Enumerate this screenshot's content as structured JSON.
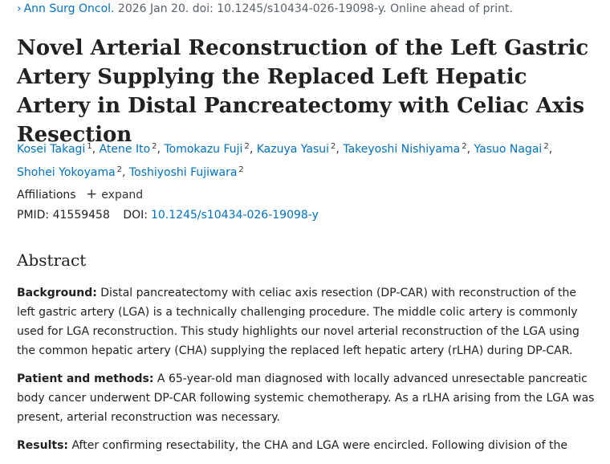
{
  "citation": {
    "journal": "Ann Surg Oncol.",
    "details": " 2026 Jan 20. doi: 10.1245/s10434-026-19098-y. Online ahead of print."
  },
  "title": "Novel Arterial Reconstruction of the Left Gastric Artery Supplying the Replaced Left Hepatic Artery in Distal Pancreatectomy with Celiac Axis Resection",
  "authors": [
    {
      "name": "Kosei Takagi",
      "aff": "1"
    },
    {
      "name": "Atene Ito",
      "aff": "2"
    },
    {
      "name": "Tomokazu Fuji",
      "aff": "2"
    },
    {
      "name": "Kazuya Yasui",
      "aff": "2"
    },
    {
      "name": "Takeyoshi Nishiyama",
      "aff": "2"
    },
    {
      "name": "Yasuo Nagai",
      "aff": "2"
    },
    {
      "name": "Shohei Yokoyama",
      "aff": "2"
    },
    {
      "name": "Toshiyoshi Fujiwara",
      "aff": "2"
    }
  ],
  "affiliations": {
    "label": "Affiliations",
    "toggle": "expand"
  },
  "ids": {
    "pmid_label": "PMID:",
    "pmid": "41559458",
    "doi_label": "DOI:",
    "doi": "10.1245/s10434-026-19098-y"
  },
  "abstract": {
    "heading": "Abstract",
    "sections": [
      {
        "label": "Background:",
        "text": " Distal pancreatectomy with celiac axis resection (DP-CAR) with reconstruction of the left gastric artery (LGA) is a technically challenging procedure. The middle colic artery is commonly used for LGA reconstruction. This study highlights our novel arterial reconstruction of the LGA using the common hepatic artery (CHA) supplying the replaced left hepatic artery (rLHA) during DP-CAR."
      },
      {
        "label": "Patient and methods:",
        "text": " A 65-year-old man diagnosed with locally advanced unresectable pancreatic body cancer underwent DP-CAR following systemic chemotherapy. As a rLHA arising from the LGA was present, arterial reconstruction was necessary."
      },
      {
        "label": "Results:",
        "text": " After confirming resectability, the CHA and LGA were encircled. Following division of the"
      }
    ]
  }
}
